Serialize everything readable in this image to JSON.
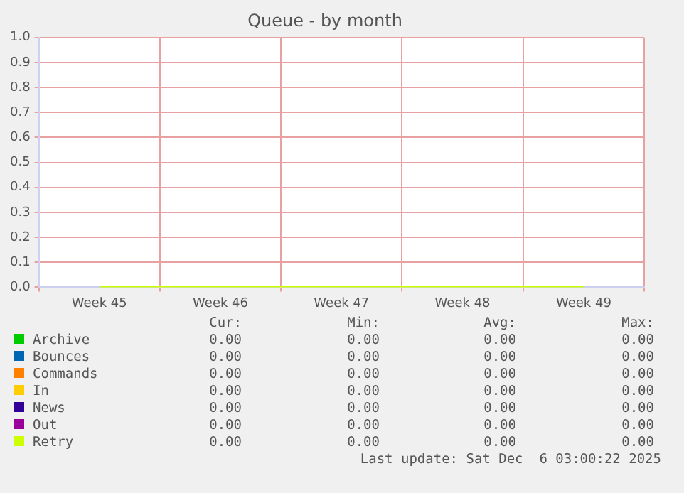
{
  "chart_data": {
    "type": "line",
    "title": "Queue - by month",
    "categories": [
      "Week 45",
      "Week 46",
      "Week 47",
      "Week 48",
      "Week 49"
    ],
    "ylim": [
      0,
      1
    ],
    "yticks": [
      {
        "value": 0,
        "label": "0.0"
      },
      0.1,
      0.2,
      0.3,
      0.4,
      0.5,
      0.6,
      0.7,
      0.8,
      0.9,
      {
        "value": 1,
        "label": "1.0"
      }
    ],
    "series": [
      {
        "name": "Archive",
        "color": "#00cc00",
        "values": [
          null,
          null,
          null,
          null,
          null
        ]
      },
      {
        "name": "Bounces",
        "color": "#0066b3",
        "values": [
          null,
          null,
          null,
          null,
          null
        ]
      },
      {
        "name": "Commands",
        "color": "#ff8000",
        "values": [
          null,
          null,
          null,
          null,
          null
        ]
      },
      {
        "name": "In",
        "color": "#ffcc00",
        "values": [
          null,
          null,
          null,
          null,
          null
        ]
      },
      {
        "name": "News",
        "color": "#330099",
        "values": [
          null,
          null,
          null,
          null,
          null
        ]
      },
      {
        "name": "Out",
        "color": "#990099",
        "values": [
          null,
          null,
          null,
          null,
          null
        ]
      },
      {
        "name": "Retry",
        "color": "#ccff00",
        "values": [
          0,
          0,
          0,
          0,
          0
        ]
      }
    ],
    "annotations": [
      "Cur:",
      "Min:",
      "Avg:",
      "Max:",
      "0.00",
      "0.00",
      "0.00",
      "0.00",
      "0.00",
      "0.00",
      "0.00",
      "0.00",
      "0.00",
      "0.00",
      "0.00",
      "0.00",
      "0.00",
      "0.00",
      "0.00",
      "0.00",
      "0.00",
      "0.00",
      "0.00",
      "0.00",
      "0.00",
      "0.00",
      "0.00",
      "0.00",
      "0.00",
      "0.00",
      "0.00",
      "0.00",
      "Last update: Sat Dec  6 03:00:22 2025"
    ],
    "grid": true,
    "legend": "bottom",
    "marker": "none",
    "line_style": "solid"
  }
}
